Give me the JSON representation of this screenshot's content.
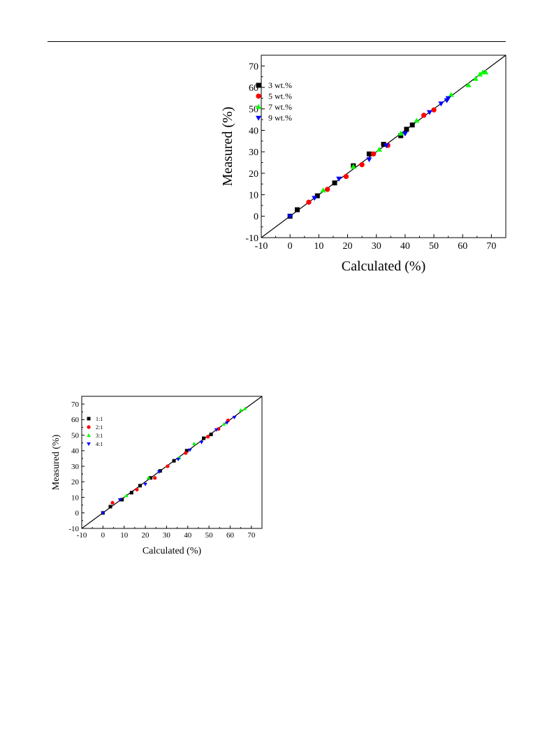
{
  "chart_data": [
    {
      "type": "scatter",
      "title": "",
      "xlabel": "Calculated (%)",
      "ylabel": "Measured (%)",
      "xlim": [
        -10,
        75
      ],
      "ylim": [
        -10,
        75
      ],
      "xticks": [
        -10,
        0,
        10,
        20,
        30,
        40,
        50,
        60,
        70
      ],
      "yticks": [
        -10,
        0,
        10,
        20,
        30,
        40,
        50,
        60,
        70
      ],
      "reference_line": "y = x",
      "legend_position": "top-left",
      "series": [
        {
          "name": "3 wt.%",
          "color": "#000000",
          "marker": "square",
          "x": [
            0,
            2.5,
            9.5,
            15.5,
            22,
            27.5,
            32.5,
            38.5,
            40.5,
            42.5
          ],
          "y": [
            0,
            3,
            9.5,
            15.5,
            23.5,
            29,
            33.5,
            37.5,
            40.5,
            42.5
          ]
        },
        {
          "name": "5 wt.%",
          "color": "#ff0000",
          "marker": "circle",
          "x": [
            6.5,
            13,
            19.5,
            25,
            29,
            34,
            46.5,
            50
          ],
          "y": [
            6.5,
            12.5,
            18.5,
            24,
            29,
            33,
            47,
            49.5
          ]
        },
        {
          "name": "7 wt.%",
          "color": "#00ff00",
          "marker": "triangle-up",
          "x": [
            11.5,
            22,
            31,
            38.5,
            44,
            56,
            62,
            64.5,
            66,
            67,
            68
          ],
          "y": [
            12,
            23,
            31,
            38.5,
            44.5,
            56.5,
            61,
            64,
            66,
            67,
            67
          ]
        },
        {
          "name": "9 wt.%",
          "color": "#0000ff",
          "marker": "triangle-down",
          "x": [
            0,
            8.5,
            17,
            27.5,
            33.5,
            40,
            48.5,
            52.5,
            54.5,
            55
          ],
          "y": [
            0,
            8.5,
            17.5,
            26.5,
            33,
            38.5,
            48.5,
            52.5,
            54,
            55
          ]
        }
      ]
    },
    {
      "type": "scatter",
      "title": "",
      "xlabel": "Calculated (%)",
      "ylabel": "Measured (%)",
      "xlim": [
        -10,
        75
      ],
      "ylim": [
        -10,
        75
      ],
      "xticks": [
        -10,
        0,
        10,
        20,
        30,
        40,
        50,
        60,
        70
      ],
      "yticks": [
        -10,
        0,
        10,
        20,
        30,
        40,
        50,
        60,
        70
      ],
      "reference_line": "y = x",
      "legend_position": "top-left",
      "series": [
        {
          "name": "1:1",
          "color": "#000000",
          "marker": "square",
          "x": [
            0,
            3.5,
            9,
            13.5,
            17.5,
            22.5,
            27,
            33.5,
            39.5,
            47.5,
            51
          ],
          "y": [
            0,
            4,
            8.5,
            13,
            17.5,
            22.5,
            27,
            33.5,
            40,
            48,
            50.5
          ]
        },
        {
          "name": "2:1",
          "color": "#ff0000",
          "marker": "circle",
          "x": [
            4.5,
            16,
            24.5,
            30.5,
            39,
            49.5,
            54.5,
            59
          ],
          "y": [
            6.5,
            15,
            22.5,
            30,
            38.5,
            49,
            54,
            59.5
          ]
        },
        {
          "name": "3:1",
          "color": "#00ff00",
          "marker": "triangle-up",
          "x": [
            11,
            21.5,
            36,
            43,
            57,
            65,
            67
          ],
          "y": [
            11,
            22.5,
            35.5,
            44.5,
            57,
            66,
            67
          ]
        },
        {
          "name": "4:1",
          "color": "#0000ff",
          "marker": "triangle-down",
          "x": [
            0,
            8,
            20,
            26.5,
            35.5,
            41,
            46.5,
            53.5,
            58.5,
            62
          ],
          "y": [
            0,
            8.5,
            18.5,
            26.5,
            34.5,
            40.5,
            45.5,
            53.5,
            58,
            61.5
          ]
        }
      ]
    }
  ]
}
